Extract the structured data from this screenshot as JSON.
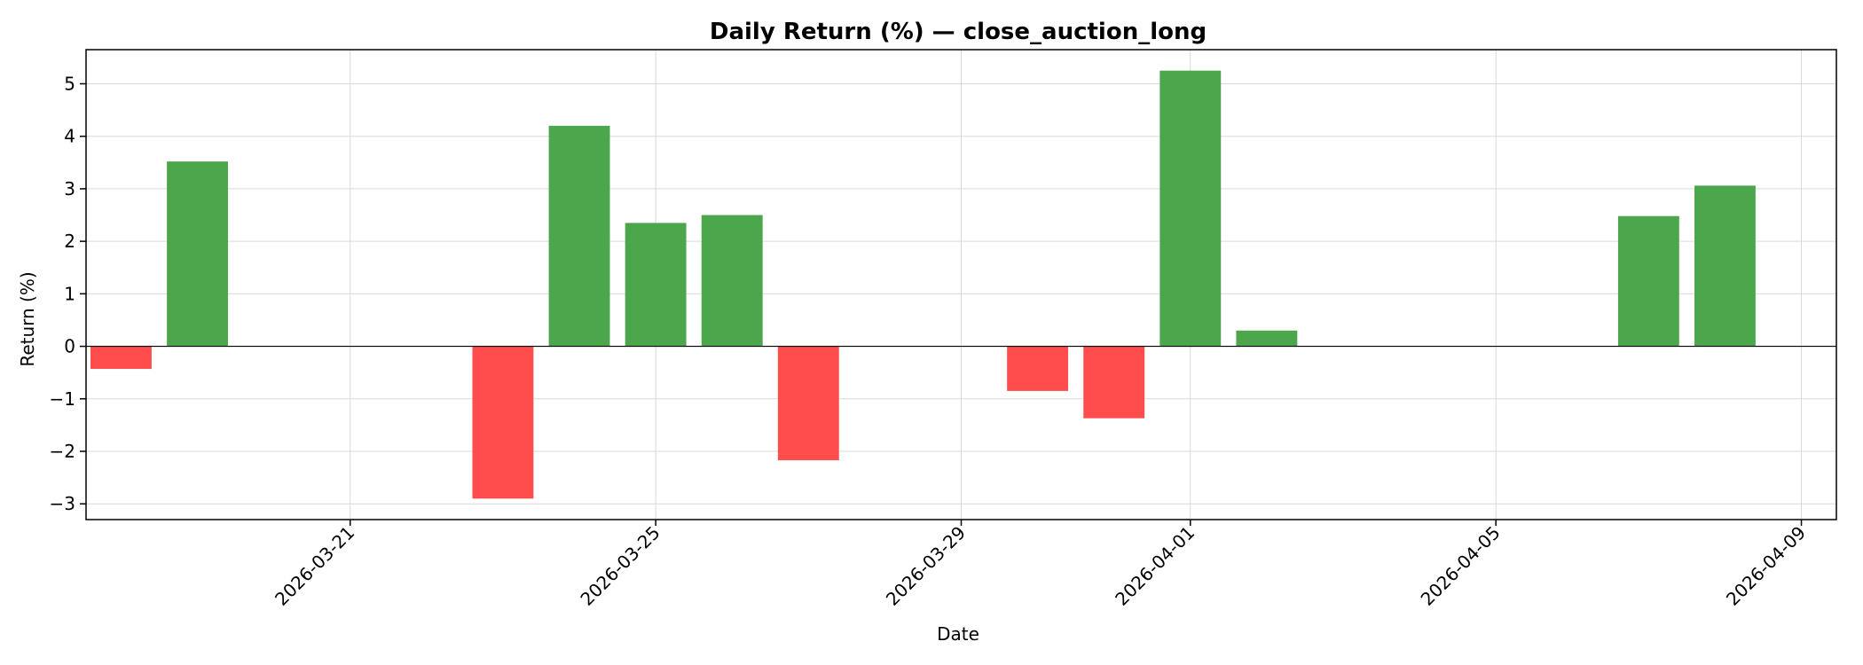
{
  "chart_data": {
    "type": "bar",
    "title": "Daily Return (%) — close_auction_long",
    "xlabel": "Date",
    "ylabel": "Return (%)",
    "x_axis": "date",
    "xlim": [
      "2026-03-17T13:00",
      "2026-04-09T11:00"
    ],
    "ylim": [
      -3.3,
      5.65
    ],
    "x_ticks": [
      "2026-03-21",
      "2026-03-25",
      "2026-03-29",
      "2026-04-01",
      "2026-04-05",
      "2026-04-09"
    ],
    "y_ticks": [
      -3,
      -2,
      -1,
      0,
      1,
      2,
      3,
      4,
      5
    ],
    "y_tick_labels": [
      "−3",
      "−2",
      "−1",
      "0",
      "1",
      "2",
      "3",
      "4",
      "5"
    ],
    "grid": true,
    "colors": {
      "positive": "#4ca64c",
      "negative": "#ff4d4d"
    },
    "x": [
      "2026-03-18",
      "2026-03-19",
      "2026-03-23",
      "2026-03-24",
      "2026-03-25",
      "2026-03-26",
      "2026-03-27",
      "2026-03-30",
      "2026-03-31",
      "2026-04-01",
      "2026-04-02",
      "2026-04-07",
      "2026-04-08"
    ],
    "values": [
      -0.43,
      3.52,
      -2.9,
      4.2,
      2.35,
      2.5,
      -2.17,
      -0.85,
      -1.37,
      5.25,
      0.3,
      2.48,
      3.06
    ]
  }
}
